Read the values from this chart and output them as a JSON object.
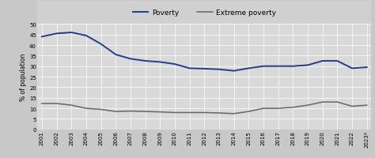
{
  "years": [
    2001,
    2002,
    2003,
    2004,
    2005,
    2006,
    2007,
    2008,
    2009,
    2010,
    2011,
    2012,
    2013,
    2014,
    2015,
    2016,
    2017,
    2018,
    2019,
    2020,
    2021,
    2022,
    2023
  ],
  "poverty": [
    44.0,
    45.5,
    46.0,
    44.5,
    40.5,
    35.5,
    33.5,
    32.5,
    32.0,
    31.0,
    29.0,
    28.8,
    28.5,
    27.8,
    29.0,
    30.0,
    30.0,
    30.0,
    30.5,
    32.5,
    32.5,
    29.0,
    29.5
  ],
  "extreme_poverty": [
    12.3,
    12.3,
    11.5,
    10.0,
    9.5,
    8.5,
    8.7,
    8.5,
    8.3,
    8.0,
    8.0,
    8.0,
    7.8,
    7.5,
    8.5,
    10.0,
    10.0,
    10.5,
    11.5,
    13.0,
    13.0,
    11.0,
    11.5
  ],
  "ylabel": "% of population",
  "ylim": [
    0,
    50
  ],
  "yticks": [
    0,
    5,
    10,
    15,
    20,
    25,
    30,
    35,
    40,
    45,
    50
  ],
  "poverty_color": "#1f3e8c",
  "extreme_poverty_color": "#666666",
  "fig_bg_color": "#c8c8c8",
  "legend_bg_color": "#d0d0d0",
  "plot_bg_color": "#d9d9d9",
  "legend_poverty": "Poverty",
  "legend_extreme": "Extreme poverty",
  "tick_label_fontsize": 5.0,
  "ylabel_fontsize": 5.5,
  "legend_fontsize": 6.5
}
